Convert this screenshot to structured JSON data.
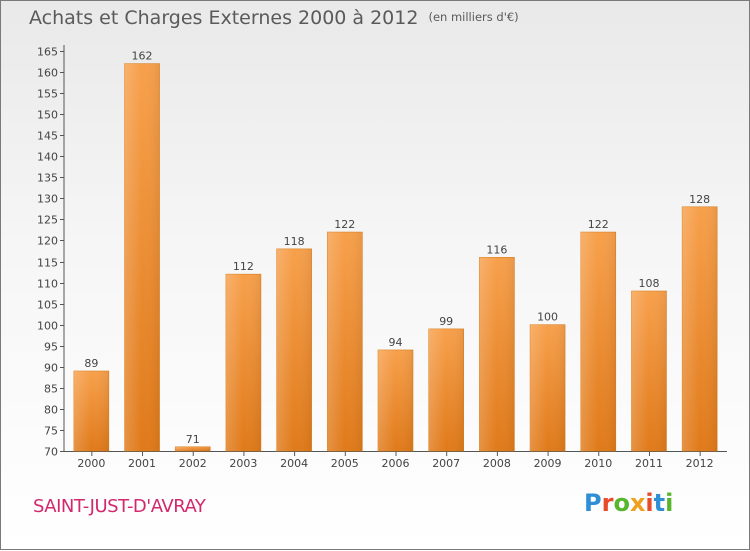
{
  "header": {
    "title": "Achats et Charges Externes 2000 à 2012",
    "subtitle": "(en milliers d'€)"
  },
  "footer": {
    "city": "SAINT-JUST-D'AVRAY",
    "logo": "Proxiti"
  },
  "colors": {
    "bar_top": "#f7a04c",
    "bar_bottom": "#e07a1a",
    "city_text": "#d2286e",
    "logo_letters": [
      "#2e8fd6",
      "#e84b2a",
      "#58b52e",
      "#f0a020",
      "#e84b2a",
      "#2e8fd6",
      "#58b52e"
    ]
  },
  "chart_data": {
    "type": "bar",
    "title": "Achats et Charges Externes 2000 à 2012",
    "subtitle": "(en milliers d'€)",
    "categories": [
      "2000",
      "2001",
      "2002",
      "2003",
      "2004",
      "2005",
      "2006",
      "2007",
      "2008",
      "2009",
      "2010",
      "2011",
      "2012"
    ],
    "values": [
      89,
      162,
      71,
      112,
      118,
      122,
      94,
      99,
      116,
      100,
      122,
      108,
      128
    ],
    "ylim": [
      70,
      165
    ],
    "yticks": [
      70,
      75,
      80,
      85,
      90,
      95,
      100,
      105,
      110,
      115,
      120,
      125,
      130,
      135,
      140,
      145,
      150,
      155,
      160,
      165
    ],
    "grid": false,
    "legend": "none"
  }
}
